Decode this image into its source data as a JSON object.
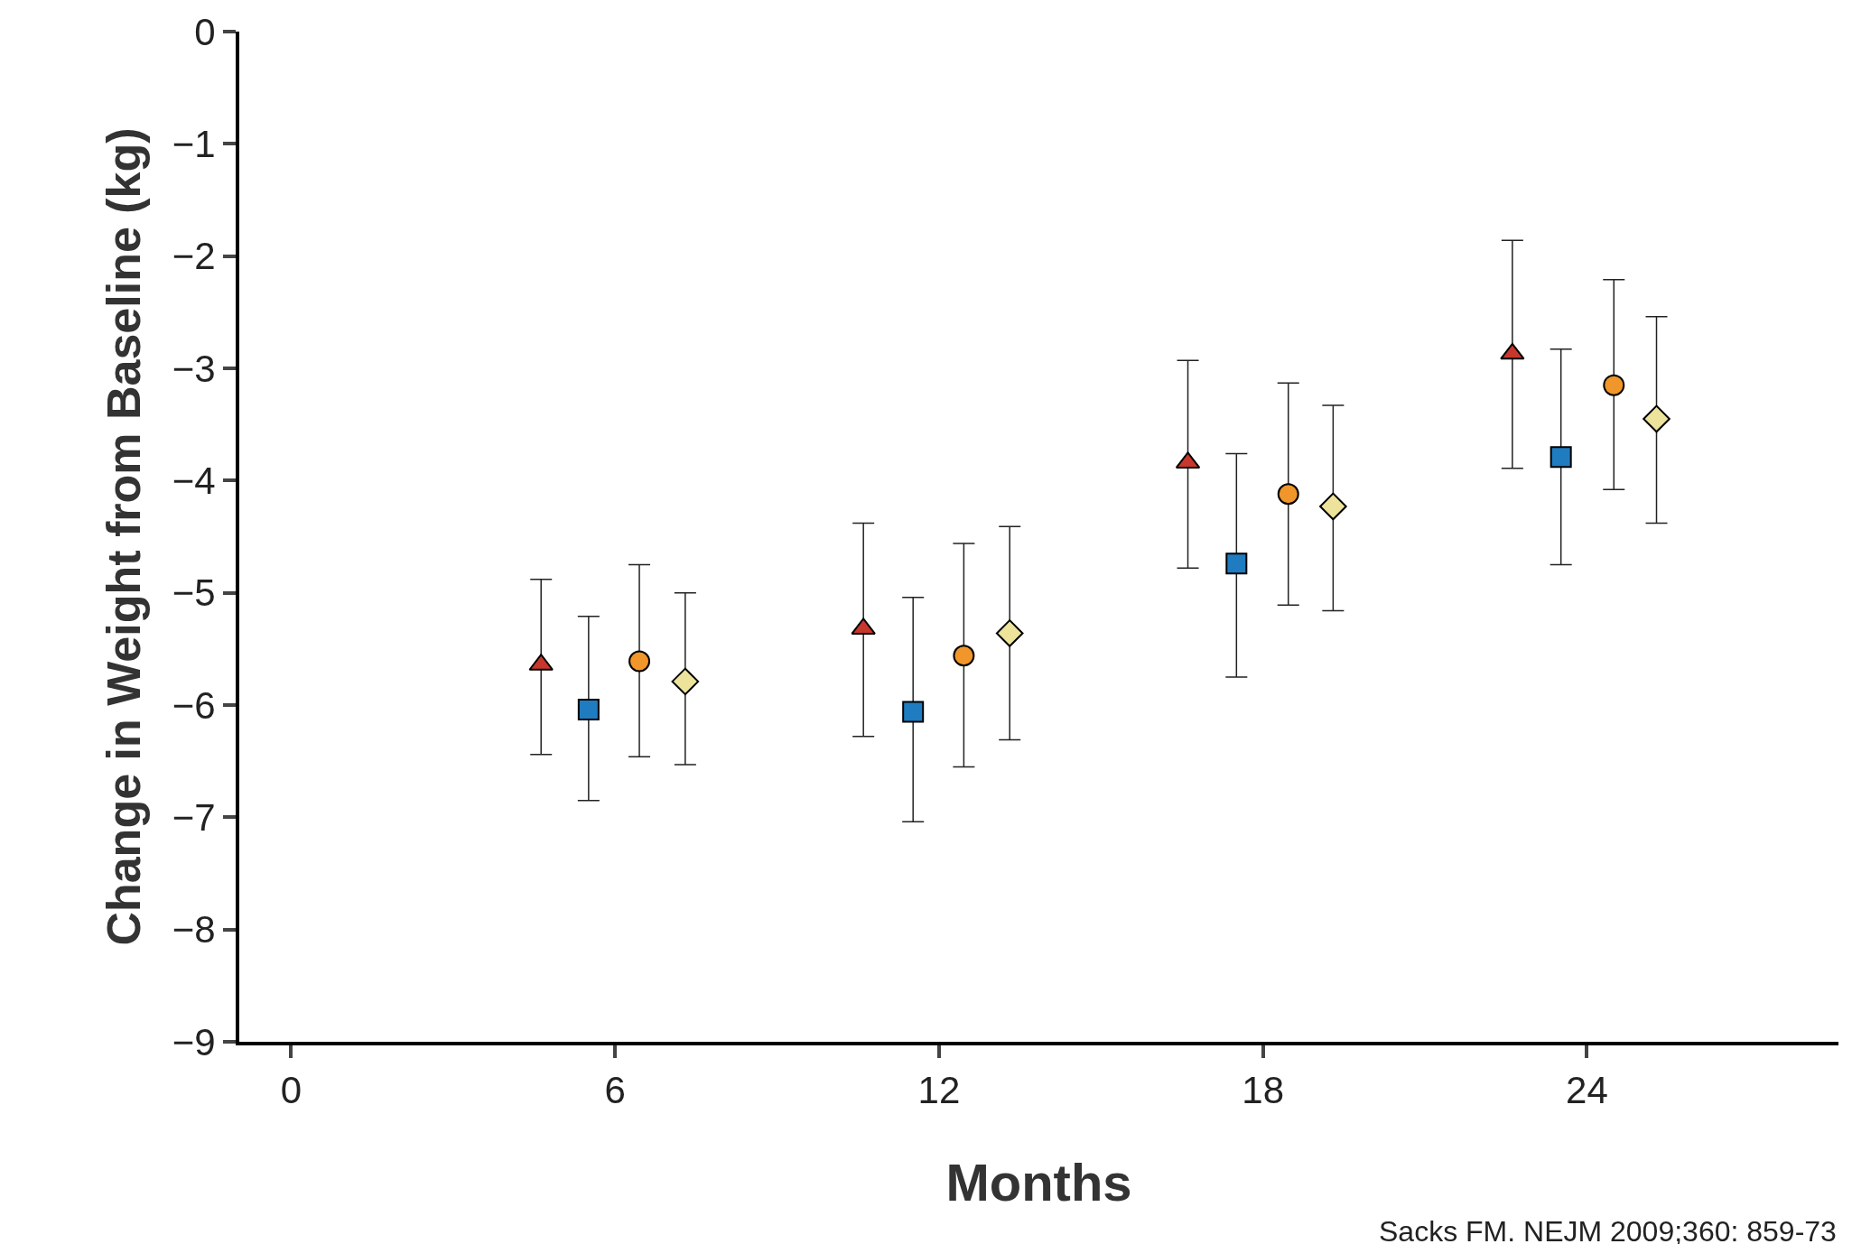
{
  "chart_data": {
    "type": "scatter",
    "xlabel": "Months",
    "ylabel": "Change in Weight from Baseline (kg)",
    "xlim": [
      -0.96,
      28.66
    ],
    "xticks": [
      0,
      6,
      12,
      18,
      24
    ],
    "ylim": [
      -9,
      0
    ],
    "yticks": [
      0,
      -1,
      -2,
      -3,
      -4,
      -5,
      -6,
      -7,
      -8,
      -9
    ],
    "annotations": [
      "Sacks FM. NEJM 2009;360: 859-73"
    ],
    "series": [
      {
        "color": "#c8372d",
        "marker": "triangle",
        "x": [
          4.63,
          10.6,
          16.61,
          22.62
        ],
        "values": [
          -5.64,
          -5.32,
          -3.84,
          -2.87
        ],
        "errors": [
          [
            -6.44,
            -4.88
          ],
          [
            -6.28,
            -4.38
          ],
          [
            -4.78,
            -2.93
          ],
          [
            -3.89,
            -1.86
          ]
        ]
      },
      {
        "color": "#1f7cc1",
        "marker": "square",
        "x": [
          5.51,
          11.52,
          17.51,
          23.52
        ],
        "values": [
          -6.04,
          -6.06,
          -4.74,
          -3.79
        ],
        "errors": [
          [
            -6.85,
            -5.21
          ],
          [
            -7.04,
            -5.04
          ],
          [
            -5.75,
            -3.76
          ],
          [
            -4.75,
            -2.83
          ]
        ]
      },
      {
        "color": "#f0962a",
        "marker": "circle",
        "x": [
          6.45,
          12.46,
          18.47,
          24.5
        ],
        "values": [
          -5.61,
          -5.56,
          -4.12,
          -3.15
        ],
        "errors": [
          [
            -6.46,
            -4.75
          ],
          [
            -6.55,
            -4.56
          ],
          [
            -5.11,
            -3.13
          ],
          [
            -4.08,
            -2.21
          ]
        ]
      },
      {
        "color": "#ede39a",
        "marker": "diamond",
        "x": [
          7.3,
          13.31,
          19.3,
          25.29
        ],
        "values": [
          -5.79,
          -5.36,
          -4.23,
          -3.45
        ],
        "errors": [
          [
            -6.53,
            -5.0
          ],
          [
            -6.31,
            -4.41
          ],
          [
            -5.16,
            -3.33
          ],
          [
            -4.38,
            -2.54
          ]
        ]
      }
    ]
  }
}
